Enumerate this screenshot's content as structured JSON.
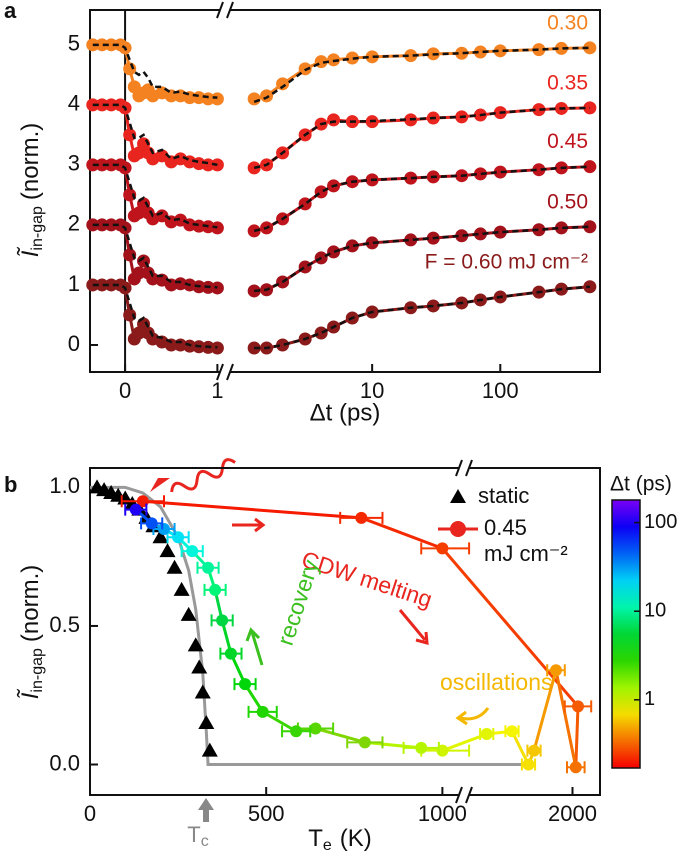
{
  "chart_data": [
    {
      "type": "line",
      "panel": "a",
      "xlabel": "Δt (ps)",
      "ylabel": {
        "main": "Ĩ",
        "sub": "in-gap",
        "unit": "(norm.)"
      },
      "ylim": [
        -0.45,
        5.58
      ],
      "yticks": [
        0,
        1,
        2,
        3,
        4,
        5
      ],
      "x_segments": [
        {
          "xlim": [
            -0.38,
            1.05
          ],
          "xticks": [
            0,
            1
          ]
        },
        {
          "xlim": [
            0.75,
            600
          ],
          "xticks": [
            10,
            100
          ],
          "log": true
        }
      ],
      "x": [
        -0.35,
        -0.25,
        -0.15,
        -0.05,
        0,
        0.05,
        0.1,
        0.15,
        0.2,
        0.25,
        0.3,
        0.4,
        0.5,
        0.6,
        0.7,
        0.8,
        0.9,
        1.0,
        1.2,
        1.5,
        2,
        3,
        4,
        5,
        7,
        10,
        20,
        30,
        50,
        70,
        100,
        200,
        300,
        500
      ],
      "fit_color": "#111111",
      "fit_style": "dashed",
      "series": [
        {
          "name": "0.30",
          "color": "#f58220",
          "values": [
            5,
            5,
            5,
            5,
            4.95,
            4.6,
            4.3,
            4.15,
            4.2,
            4.25,
            4.15,
            4.2,
            4.15,
            4.15,
            4.12,
            4.12,
            4.1,
            4.1,
            4.1,
            4.15,
            4.35,
            4.6,
            4.72,
            4.75,
            4.78,
            4.8,
            4.82,
            4.85,
            4.86,
            4.88,
            4.9,
            4.92,
            4.94,
            4.95
          ],
          "fit": [
            5,
            5,
            5,
            5,
            4.95,
            4.75,
            4.55,
            4.5,
            4.55,
            4.45,
            4.3,
            4.3,
            4.2,
            4.22,
            4.17,
            4.15,
            4.13,
            4.12,
            4.05,
            4.12,
            4.3,
            4.58,
            4.7,
            4.73,
            4.77,
            4.8,
            4.82,
            4.84,
            4.86,
            4.88,
            4.9,
            4.92,
            4.94,
            4.95
          ]
        },
        {
          "name": "0.35",
          "color": "#e8251e",
          "values": [
            4,
            4,
            4,
            4,
            3.95,
            3.5,
            3.15,
            3.2,
            3.35,
            3.2,
            3.1,
            3.15,
            3.05,
            3.1,
            3.05,
            3.02,
            3.0,
            3.0,
            2.95,
            3.0,
            3.2,
            3.5,
            3.68,
            3.75,
            3.72,
            3.72,
            3.75,
            3.78,
            3.8,
            3.83,
            3.87,
            3.92,
            3.94,
            3.95
          ],
          "fit": [
            4,
            4,
            4,
            4,
            3.95,
            3.7,
            3.45,
            3.45,
            3.5,
            3.35,
            3.2,
            3.25,
            3.1,
            3.15,
            3.08,
            3.05,
            3.03,
            3.0,
            2.95,
            3.0,
            3.2,
            3.5,
            3.68,
            3.72,
            3.72,
            3.73,
            3.76,
            3.78,
            3.8,
            3.83,
            3.87,
            3.92,
            3.94,
            3.95
          ]
        },
        {
          "name": "0.45",
          "color": "#c0141c",
          "values": [
            3,
            3,
            3,
            3,
            2.95,
            2.5,
            2.15,
            2.2,
            2.35,
            2.2,
            2.1,
            2.15,
            2.05,
            2.08,
            2.0,
            1.98,
            1.97,
            1.95,
            1.9,
            1.95,
            2.1,
            2.35,
            2.55,
            2.65,
            2.72,
            2.75,
            2.78,
            2.8,
            2.82,
            2.85,
            2.88,
            2.92,
            2.95,
            2.97
          ],
          "fit": [
            3,
            3,
            3,
            3,
            2.95,
            2.7,
            2.45,
            2.4,
            2.45,
            2.3,
            2.15,
            2.2,
            2.08,
            2.1,
            2.02,
            2.0,
            1.98,
            1.96,
            1.9,
            1.95,
            2.1,
            2.35,
            2.55,
            2.65,
            2.72,
            2.75,
            2.78,
            2.8,
            2.82,
            2.85,
            2.88,
            2.92,
            2.95,
            2.97
          ]
        },
        {
          "name": "0.50",
          "color": "#a3121a",
          "values": [
            2,
            2,
            2,
            2,
            1.95,
            1.5,
            1.1,
            1.2,
            1.4,
            1.2,
            1.1,
            1.08,
            1.0,
            1.02,
            1.0,
            0.97,
            0.96,
            0.95,
            0.9,
            0.92,
            1.05,
            1.3,
            1.45,
            1.55,
            1.65,
            1.7,
            1.75,
            1.78,
            1.82,
            1.85,
            1.88,
            1.92,
            1.95,
            1.97
          ],
          "fit": [
            2,
            2,
            2,
            2,
            1.95,
            1.7,
            1.45,
            1.4,
            1.45,
            1.3,
            1.15,
            1.15,
            1.05,
            1.05,
            1.0,
            0.98,
            0.97,
            0.96,
            0.9,
            0.92,
            1.05,
            1.3,
            1.45,
            1.55,
            1.65,
            1.7,
            1.75,
            1.78,
            1.82,
            1.85,
            1.88,
            1.92,
            1.95,
            1.97
          ]
        },
        {
          "name": "F = 0.60 mJ cm⁻²",
          "color": "#8b1a1a",
          "values": [
            1,
            1,
            1,
            1,
            0.95,
            0.5,
            0.1,
            0.2,
            0.35,
            0.2,
            0.1,
            0.05,
            0.0,
            0.0,
            -0.02,
            -0.03,
            -0.04,
            -0.05,
            -0.05,
            -0.05,
            0.0,
            0.1,
            0.2,
            0.3,
            0.45,
            0.55,
            0.62,
            0.65,
            0.7,
            0.75,
            0.8,
            0.88,
            0.93,
            0.97
          ],
          "fit": [
            1,
            1,
            1,
            1,
            0.95,
            0.7,
            0.45,
            0.4,
            0.45,
            0.3,
            0.15,
            0.12,
            0.05,
            0.05,
            0.0,
            -0.02,
            -0.03,
            -0.04,
            -0.05,
            -0.05,
            0.0,
            0.1,
            0.2,
            0.3,
            0.45,
            0.55,
            0.62,
            0.65,
            0.7,
            0.75,
            0.8,
            0.88,
            0.93,
            0.97
          ]
        }
      ]
    },
    {
      "type": "scatter",
      "panel": "b",
      "xlabel": {
        "main": "T",
        "sub": "e",
        "unit": "(K)"
      },
      "ylabel": {
        "main": "Ĩ",
        "sub": "in-gap",
        "unit": "(norm.)"
      },
      "ylim": [
        -0.11,
        1.07
      ],
      "yticks": [
        {
          "value": 0,
          "label": "0.0"
        },
        {
          "value": 0.5,
          "label": "0.5"
        },
        {
          "value": 1,
          "label": "1.0"
        }
      ],
      "x_segments": [
        {
          "xlim": [
            0,
            1050
          ],
          "xticks": [
            0,
            500,
            1000
          ]
        },
        {
          "xlim": [
            1050,
            2250
          ],
          "xticks": [
            2000
          ]
        }
      ],
      "tc_label": {
        "main": "T",
        "sub": "c"
      },
      "annotations": [
        "CDW melting",
        "recovery",
        "oscillations"
      ],
      "curve": {
        "color": "#999999",
        "x": [
          0,
          100,
          150,
          200,
          250,
          280,
          300,
          320,
          330,
          335,
          1000,
          1600
        ],
        "values": [
          1.0,
          1.0,
          0.98,
          0.93,
          0.82,
          0.7,
          0.56,
          0.33,
          0.12,
          0,
          0,
          0
        ]
      },
      "series": [
        {
          "name": "static",
          "color": "#000000",
          "marker": "triangle",
          "x": [
            20,
            40,
            60,
            80,
            100,
            120,
            140,
            160,
            180,
            200,
            220,
            240,
            260,
            280,
            300,
            310,
            320,
            330,
            340
          ],
          "values": [
            1.0,
            0.99,
            0.98,
            0.97,
            0.96,
            0.94,
            0.92,
            0.89,
            0.86,
            0.82,
            0.77,
            0.71,
            0.63,
            0.54,
            0.43,
            0.35,
            0.26,
            0.15,
            0.05
          ]
        },
        {
          "name": [
            "0.45",
            "mJ cm⁻²"
          ],
          "color": "#e8251e",
          "marker": "circle",
          "x": [
            150,
            770,
            1000,
            2050,
            2030,
            1850,
            1650,
            1600,
            1450,
            1220,
            1000,
            940,
            780,
            640,
            585,
            490,
            440,
            400,
            375,
            355,
            335,
            290,
            250,
            210,
            175,
            130
          ],
          "values": [
            0.95,
            0.89,
            0.78,
            0.21,
            -0.01,
            0.34,
            0.05,
            0.0,
            0.12,
            0.11,
            0.05,
            0.06,
            0.08,
            0.13,
            0.12,
            0.19,
            0.29,
            0.4,
            0.52,
            0.63,
            0.71,
            0.77,
            0.82,
            0.85,
            0.87,
            0.92
          ],
          "xerr": [
            60,
            60,
            60,
            120,
            80,
            80,
            60,
            60,
            60,
            60,
            60,
            50,
            50,
            50,
            40,
            40,
            30,
            30,
            30,
            30,
            30,
            30,
            30,
            30,
            30,
            30
          ],
          "dt": [
            0.2,
            0.22,
            0.25,
            0.3,
            0.35,
            0.45,
            0.6,
            0.7,
            0.8,
            0.9,
            1.0,
            1.2,
            1.5,
            2,
            2.5,
            3,
            4,
            5,
            6,
            8,
            10,
            15,
            20,
            30,
            50,
            100
          ]
        }
      ],
      "colorbar": {
        "label": "Δt (ps)",
        "clim": [
          0.17,
          180
        ],
        "ticks": [
          1,
          10,
          100
        ],
        "log": true,
        "colormap": "rainbow"
      }
    }
  ]
}
